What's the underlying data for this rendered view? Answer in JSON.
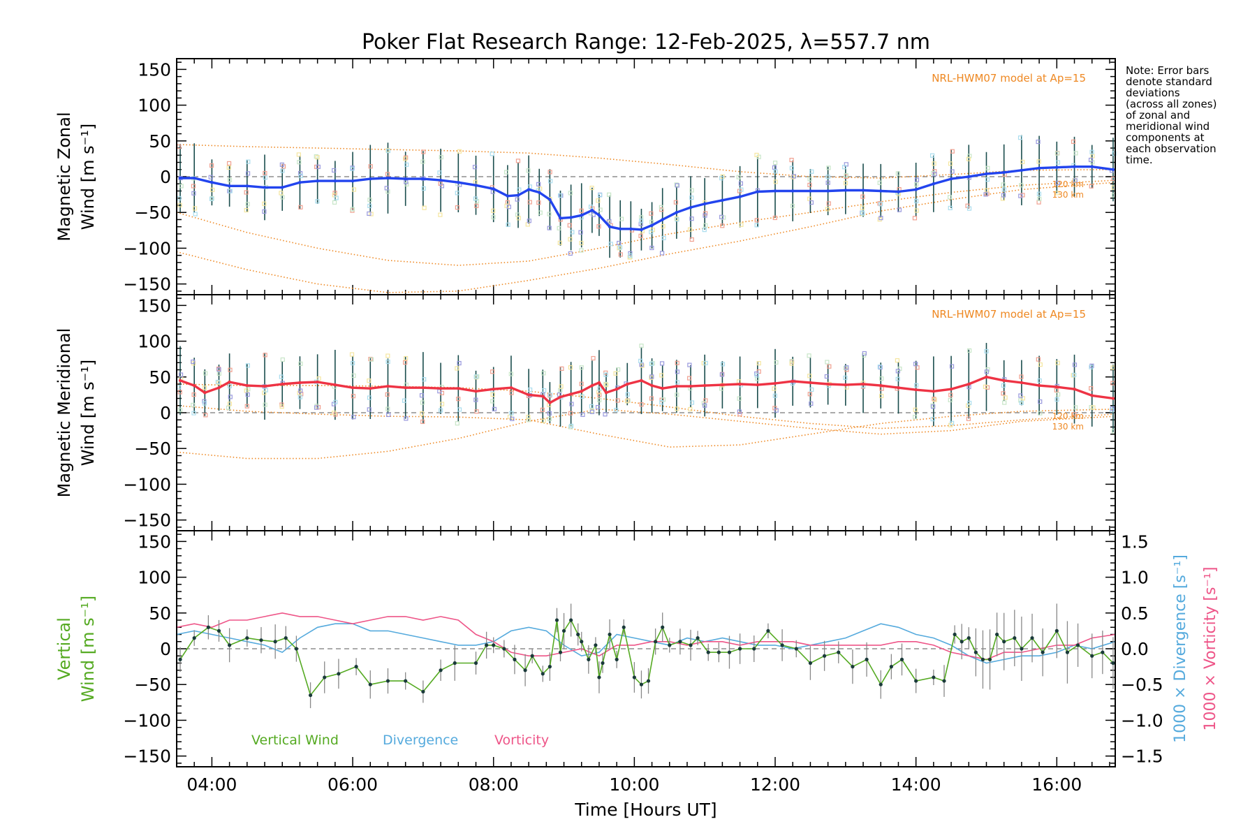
{
  "chart_data": {
    "type": "line",
    "title": "Poker Flat Research Range: 12-Feb-2025, λ=557.7 nm",
    "xlabel": "Time [Hours UT]",
    "xlim": [
      3.5,
      16.83
    ],
    "x_ticks": [
      4,
      6,
      8,
      10,
      12,
      14,
      16
    ],
    "x_tick_labels": [
      "04:00",
      "06:00",
      "08:00",
      "10:00",
      "12:00",
      "14:00",
      "16:00"
    ],
    "note": [
      "Note: Error bars",
      "denote standard",
      "deviations",
      "(across all zones)",
      "of zonal and",
      "meridional wind",
      "components at",
      "each observation",
      "time."
    ],
    "colors": {
      "zonal": "#2244ee",
      "meridional": "#ee3344",
      "vertical": "#55aa22",
      "divergence": "#55aadd",
      "vorticity": "#ee5588",
      "model": "#ee8822",
      "errorbar": "#1a4d4d",
      "zone_points": "#9999dd"
    },
    "panels": [
      {
        "ylabel_line1": "Magnetic Zonal",
        "ylabel_line2": "Wind [m s⁻¹]",
        "ylim": [
          -165,
          165
        ],
        "y_ticks": [
          150,
          100,
          50,
          0,
          -50,
          -100,
          -150
        ],
        "y_tick_labels": [
          "150",
          "100",
          "50",
          "0",
          "−50",
          "−100",
          "−150"
        ],
        "model_label": "NRL-HWM07 model at Ap=15",
        "model_alt_labels": [
          "120 km",
          "130 km"
        ],
        "series": [
          {
            "name": "zonal",
            "x": [
              3.55,
              3.75,
              4.0,
              4.25,
              4.5,
              4.75,
              5.0,
              5.25,
              5.5,
              5.75,
              6.0,
              6.25,
              6.5,
              6.75,
              7.0,
              7.25,
              7.5,
              7.75,
              8.0,
              8.2,
              8.35,
              8.5,
              8.65,
              8.8,
              8.95,
              9.1,
              9.25,
              9.4,
              9.5,
              9.65,
              9.8,
              9.95,
              10.1,
              10.25,
              10.4,
              10.6,
              10.8,
              11.0,
              11.25,
              11.5,
              11.75,
              12.0,
              12.25,
              12.5,
              12.75,
              13.0,
              13.25,
              13.5,
              13.75,
              14.0,
              14.25,
              14.5,
              14.75,
              15.0,
              15.25,
              15.5,
              15.75,
              16.0,
              16.25,
              16.5,
              16.8
            ],
            "y": [
              -2,
              -2,
              -8,
              -13,
              -13,
              -15,
              -15,
              -8,
              -6,
              -6,
              -6,
              -3,
              -2,
              -3,
              -3,
              -5,
              -8,
              -12,
              -17,
              -27,
              -26,
              -18,
              -22,
              -32,
              -58,
              -57,
              -54,
              -47,
              -54,
              -70,
              -73,
              -73,
              -74,
              -68,
              -60,
              -50,
              -43,
              -38,
              -33,
              -28,
              -21,
              -20,
              -20,
              -20,
              -20,
              -19,
              -19,
              -20,
              -21,
              -18,
              -10,
              -3,
              0,
              4,
              6,
              9,
              12,
              13,
              14,
              14,
              10
            ]
          }
        ],
        "model_curves": [
          {
            "x": [
              3.5,
              4.5,
              5.5,
              6.5,
              7.5,
              8.5,
              9.5,
              10.5,
              11.5,
              12.5,
              13.5,
              14.5,
              15.5,
              16.83
            ],
            "y": [
              45,
              42,
              40,
              38,
              36,
              33,
              26,
              17,
              7,
              0,
              -2,
              3,
              9,
              10
            ]
          },
          {
            "x": [
              3.5,
              4.5,
              5.5,
              6.5,
              7.5,
              8.5,
              9.5,
              10.5,
              11.5,
              12.5,
              13.5,
              14.5,
              15.5,
              16.83
            ],
            "y": [
              -50,
              -78,
              -100,
              -117,
              -124,
              -118,
              -100,
              -80,
              -64,
              -50,
              -35,
              -22,
              -12,
              -5
            ]
          },
          {
            "x": [
              3.5,
              4.5,
              5.5,
              6.5,
              7.5,
              8.5,
              9.5,
              10.5,
              11.5,
              12.5,
              13.5,
              14.5,
              15.5,
              16.83
            ],
            "y": [
              -105,
              -130,
              -150,
              -162,
              -160,
              -145,
              -128,
              -108,
              -90,
              -70,
              -48,
              -32,
              -18,
              -8
            ]
          }
        ]
      },
      {
        "ylabel_line1": "Magnetic Meridional",
        "ylabel_line2": "Wind [m s⁻¹]",
        "ylim": [
          -165,
          165
        ],
        "y_ticks": [
          150,
          100,
          50,
          0,
          -50,
          -100,
          -150
        ],
        "y_tick_labels": [
          "150",
          "100",
          "50",
          "0",
          "−50",
          "−100",
          "−150"
        ],
        "model_label": "NRL-HWM07 model at Ap=15",
        "model_alt_labels": [
          "120 km",
          "130 km"
        ],
        "series": [
          {
            "name": "meridional",
            "x": [
              3.55,
              3.75,
              3.9,
              4.1,
              4.25,
              4.5,
              4.75,
              5.0,
              5.25,
              5.5,
              5.75,
              6.0,
              6.25,
              6.5,
              6.75,
              7.0,
              7.25,
              7.5,
              7.75,
              8.0,
              8.25,
              8.5,
              8.7,
              8.8,
              8.95,
              9.1,
              9.25,
              9.4,
              9.5,
              9.6,
              9.75,
              9.9,
              10.1,
              10.25,
              10.4,
              10.6,
              10.8,
              11.0,
              11.25,
              11.5,
              11.75,
              12.0,
              12.25,
              12.5,
              12.75,
              13.0,
              13.25,
              13.5,
              13.75,
              14.0,
              14.25,
              14.5,
              14.75,
              15.0,
              15.25,
              15.5,
              15.75,
              16.0,
              16.25,
              16.5,
              16.8
            ],
            "y": [
              45,
              38,
              28,
              35,
              43,
              38,
              37,
              40,
              42,
              43,
              39,
              35,
              34,
              37,
              35,
              35,
              34,
              34,
              30,
              33,
              35,
              25,
              23,
              14,
              22,
              26,
              30,
              38,
              42,
              28,
              33,
              40,
              45,
              38,
              34,
              37,
              37,
              38,
              39,
              40,
              39,
              41,
              44,
              42,
              40,
              39,
              40,
              38,
              35,
              32,
              30,
              33,
              40,
              50,
              45,
              42,
              38,
              36,
              33,
              24,
              20
            ]
          }
        ],
        "model_curves": [
          {
            "x": [
              3.5,
              4.5,
              5.5,
              6.5,
              7.5,
              8.5,
              9.5,
              10.5,
              11.5,
              12.5,
              13.5,
              14.5,
              15.5,
              16.83
            ],
            "y": [
              40,
              38,
              38,
              37,
              35,
              30,
              20,
              8,
              -5,
              -15,
              -22,
              -18,
              -10,
              -2
            ]
          },
          {
            "x": [
              3.5,
              4.5,
              5.5,
              6.5,
              7.5,
              8.5,
              9.5,
              10.5,
              11.5,
              12.5,
              13.5,
              14.5,
              15.5,
              16.83
            ],
            "y": [
              -55,
              -64,
              -64,
              -54,
              -36,
              -12,
              5,
              -2,
              -12,
              -22,
              -30,
              -25,
              -12,
              -5
            ]
          },
          {
            "x": [
              3.5,
              4.5,
              5.5,
              6.5,
              7.5,
              8.5,
              9.5,
              10.5,
              11.5,
              12.5,
              13.5,
              14.5,
              15.5,
              16.83
            ],
            "y": [
              10,
              2,
              -2,
              -5,
              -6,
              -10,
              -30,
              -48,
              -45,
              -30,
              -15,
              -5,
              2,
              5
            ]
          }
        ]
      },
      {
        "ylabel_line1": "Vertical",
        "ylabel_line2": "Wind [m s⁻¹]",
        "ylim": [
          -165,
          165
        ],
        "y_ticks": [
          150,
          100,
          50,
          0,
          -50,
          -100,
          -150
        ],
        "y_tick_labels": [
          "150",
          "100",
          "50",
          "0",
          "−50",
          "−100",
          "−150"
        ],
        "right_ylim": [
          -1.65,
          1.65
        ],
        "right_y_ticks": [
          1.5,
          1.0,
          0.5,
          0.0,
          -0.5,
          -1.0,
          -1.5
        ],
        "right_y_tick_labels": [
          "1.5",
          "1.0",
          "0.5",
          "0.0",
          "−0.5",
          "−1.0",
          "−1.5"
        ],
        "right_ylabel_1": "1000 × Divergence [s⁻¹]",
        "right_ylabel_2": "1000 × Vorticity [s⁻¹]",
        "legend": [
          "Vertical Wind",
          "Divergence",
          "Vorticity"
        ],
        "series": [
          {
            "name": "Vertical Wind",
            "x": [
              3.55,
              3.75,
              3.95,
              4.1,
              4.25,
              4.5,
              4.7,
              4.9,
              5.05,
              5.2,
              5.4,
              5.6,
              5.8,
              6.05,
              6.25,
              6.5,
              6.75,
              7.0,
              7.25,
              7.45,
              7.75,
              7.9,
              8.0,
              8.15,
              8.3,
              8.45,
              8.55,
              8.7,
              8.8,
              8.9,
              8.95,
              9.0,
              9.1,
              9.2,
              9.25,
              9.35,
              9.45,
              9.5,
              9.55,
              9.65,
              9.75,
              9.85,
              10.0,
              10.1,
              10.2,
              10.3,
              10.4,
              10.5,
              10.65,
              10.8,
              10.9,
              11.05,
              11.2,
              11.35,
              11.5,
              11.7,
              11.9,
              12.1,
              12.3,
              12.5,
              12.7,
              12.9,
              13.1,
              13.3,
              13.5,
              13.65,
              13.8,
              14.0,
              14.25,
              14.4,
              14.55,
              14.65,
              14.75,
              14.85,
              14.95,
              15.05,
              15.15,
              15.25,
              15.4,
              15.5,
              15.65,
              15.8,
              16.0,
              16.15,
              16.3,
              16.5,
              16.65,
              16.8
            ],
            "y": [
              -15,
              15,
              30,
              25,
              5,
              15,
              12,
              10,
              15,
              0,
              -65,
              -40,
              -35,
              -25,
              -50,
              -45,
              -45,
              -60,
              -30,
              -20,
              -20,
              5,
              5,
              0,
              -15,
              -30,
              -10,
              -35,
              -25,
              40,
              -5,
              25,
              40,
              20,
              10,
              -15,
              5,
              -40,
              -20,
              20,
              -15,
              30,
              -40,
              -50,
              -45,
              10,
              30,
              5,
              10,
              5,
              15,
              -5,
              -5,
              -5,
              0,
              0,
              25,
              5,
              0,
              -20,
              -10,
              -5,
              -25,
              -15,
              -50,
              -25,
              -15,
              -45,
              -40,
              -45,
              20,
              10,
              15,
              -5,
              -15,
              -15,
              20,
              10,
              15,
              0,
              15,
              -5,
              25,
              -5,
              5,
              -10,
              -5,
              -20
            ]
          },
          {
            "name": "Divergence",
            "x": [
              3.5,
              3.75,
              4.0,
              4.25,
              4.5,
              4.75,
              5.0,
              5.25,
              5.5,
              5.75,
              6.0,
              6.25,
              6.5,
              6.75,
              7.0,
              7.25,
              7.5,
              7.75,
              8.0,
              8.25,
              8.5,
              8.75,
              9.0,
              9.25,
              9.5,
              9.75,
              10.0,
              10.25,
              10.5,
              10.75,
              11.0,
              11.25,
              11.5,
              11.75,
              12.0,
              12.25,
              12.5,
              12.75,
              13.0,
              13.25,
              13.5,
              13.75,
              14.0,
              14.25,
              14.5,
              14.75,
              15.0,
              15.25,
              15.5,
              15.75,
              16.0,
              16.25,
              16.5,
              16.83
            ],
            "y": [
              0.2,
              0.25,
              0.2,
              0.15,
              0.1,
              0.05,
              -0.05,
              0.15,
              0.3,
              0.35,
              0.35,
              0.25,
              0.25,
              0.2,
              0.15,
              0.1,
              0.05,
              0.05,
              0.1,
              0.25,
              0.3,
              0.25,
              0.05,
              -0.1,
              -0.05,
              0.2,
              0.15,
              0.1,
              0.05,
              0.15,
              0.1,
              0.15,
              0.1,
              0.05,
              0.05,
              0.0,
              0.05,
              0.1,
              0.15,
              0.25,
              0.35,
              0.3,
              0.2,
              0.15,
              0.05,
              -0.1,
              -0.2,
              -0.15,
              -0.1,
              -0.1,
              -0.05,
              0.05,
              0.0,
              0.1
            ]
          },
          {
            "name": "Vorticity",
            "x": [
              3.5,
              3.75,
              4.0,
              4.25,
              4.5,
              4.75,
              5.0,
              5.25,
              5.5,
              5.75,
              6.0,
              6.25,
              6.5,
              6.75,
              7.0,
              7.25,
              7.5,
              7.75,
              8.0,
              8.25,
              8.5,
              8.75,
              9.0,
              9.25,
              9.5,
              9.75,
              10.0,
              10.25,
              10.5,
              10.75,
              11.0,
              11.25,
              11.5,
              11.75,
              12.0,
              12.25,
              12.5,
              12.75,
              13.0,
              13.25,
              13.5,
              13.75,
              14.0,
              14.25,
              14.5,
              14.75,
              15.0,
              15.25,
              15.5,
              15.75,
              16.0,
              16.25,
              16.5,
              16.83
            ],
            "y": [
              0.3,
              0.35,
              0.3,
              0.4,
              0.4,
              0.45,
              0.5,
              0.45,
              0.45,
              0.4,
              0.35,
              0.4,
              0.45,
              0.45,
              0.4,
              0.45,
              0.4,
              0.2,
              0.1,
              -0.05,
              -0.1,
              -0.1,
              -0.05,
              0.0,
              -0.1,
              0.05,
              0.05,
              0.1,
              0.1,
              0.05,
              0.1,
              0.1,
              0.05,
              0.1,
              0.1,
              0.1,
              0.05,
              0.05,
              0.05,
              0.05,
              0.05,
              0.1,
              0.1,
              0.05,
              -0.05,
              -0.1,
              -0.15,
              -0.05,
              -0.05,
              0.0,
              0.05,
              0.05,
              0.15,
              0.2
            ]
          }
        ]
      }
    ]
  }
}
